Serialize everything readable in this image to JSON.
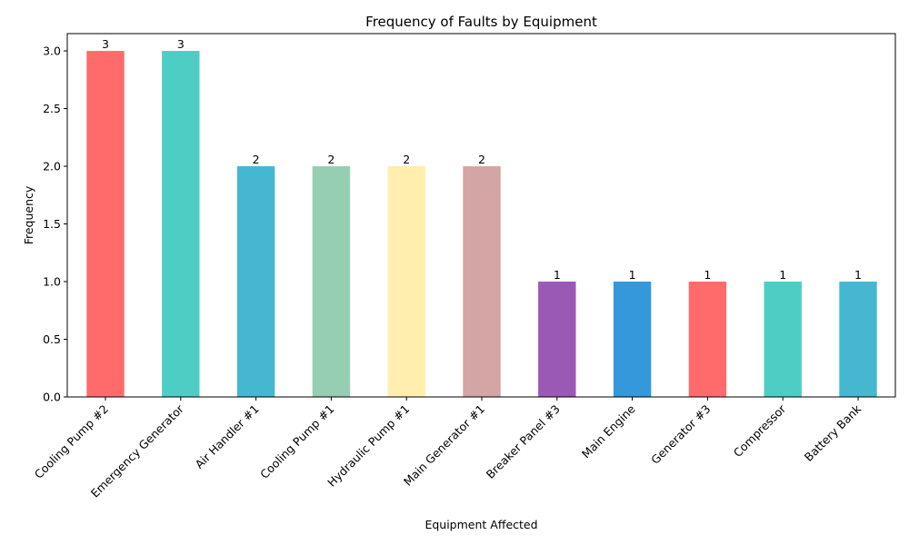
{
  "chart_data": {
    "type": "bar",
    "title": "Frequency of Faults by Equipment",
    "xlabel": "Equipment Affected",
    "ylabel": "Frequency",
    "categories": [
      "Cooling Pump #2",
      "Emergency Generator",
      "Air Handler #1",
      "Cooling Pump #1",
      "Hydraulic Pump #1",
      "Main Generator #1",
      "Breaker Panel #3",
      "Main Engine",
      "Generator #3",
      "Compressor",
      "Battery Bank"
    ],
    "values": [
      3,
      3,
      2,
      2,
      2,
      2,
      1,
      1,
      1,
      1,
      1
    ],
    "data_labels": [
      "3",
      "3",
      "2",
      "2",
      "2",
      "2",
      "1",
      "1",
      "1",
      "1",
      "1"
    ],
    "colors": [
      "#ff6b6b",
      "#4ecdc4",
      "#45b7d1",
      "#96ceb4",
      "#ffeead",
      "#d4a5a5",
      "#9b59b6",
      "#3498db",
      "#ff6b6b",
      "#4ecdc4",
      "#45b7d1"
    ],
    "ylim": [
      0,
      3.15
    ],
    "yticks": [
      "0.0",
      "0.5",
      "1.0",
      "1.5",
      "2.0",
      "2.5",
      "3.0"
    ],
    "grid": false,
    "legend": "none"
  }
}
